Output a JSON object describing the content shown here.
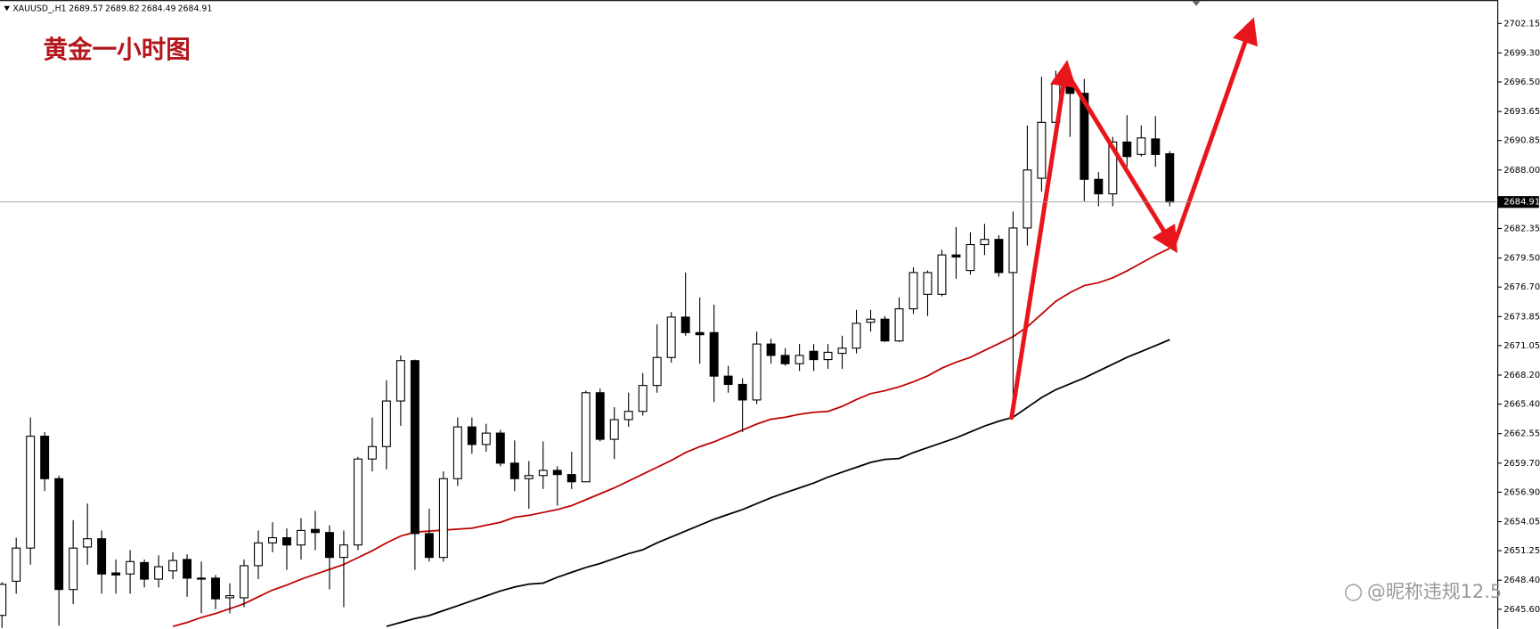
{
  "chart_data": {
    "type": "candlestick",
    "symbol": "XAUUSD_,H1",
    "header_values": [
      2689.57,
      2689.82,
      2684.49,
      2684.91
    ],
    "title": "黄金一小时图",
    "watermark": "@昵称违规12.5",
    "current_price": 2684.91,
    "up_color": "#ffffff",
    "down_color": "#000000",
    "ylim": [
      2643.7,
      2704.4
    ],
    "yticks": [
      2702.15,
      {
        "value": 2699.3,
        "label": "2699.30"
      },
      {
        "value": 2696.5,
        "label": "2696.50"
      },
      2693.65,
      2690.85,
      {
        "value": 2688,
        "label": "2688.00"
      },
      2682.35,
      {
        "value": 2679.5,
        "label": "2679.50"
      },
      {
        "value": 2676.7,
        "label": "2676.70"
      },
      2673.85,
      2671.05,
      {
        "value": 2668.2,
        "label": "2668.20"
      },
      {
        "value": 2665.4,
        "label": "2665.40"
      },
      2662.55,
      {
        "value": 2659.7,
        "label": "2659.70"
      },
      {
        "value": 2656.9,
        "label": "2656.90"
      },
      2654.05,
      2651.25,
      {
        "value": 2648.4,
        "label": "2648.40"
      },
      {
        "value": 2645.6,
        "label": "2645.60"
      }
    ],
    "open": [
      2645.0,
      2648.3,
      2651.5,
      2662.3,
      2658.2,
      2647.5,
      2651.6,
      2652.4,
      2649.1,
      2649.0,
      2650.1,
      2648.5,
      2649.3,
      2650.4,
      2648.6,
      2648.6,
      2646.7,
      2646.7,
      2649.8,
      2652.0,
      2652.5,
      2651.8,
      2653.3,
      2653.0,
      2650.6,
      2651.8,
      2660.1,
      2661.3,
      2665.7,
      2669.6,
      2652.9,
      2650.6,
      2658.2,
      2663.2,
      2661.5,
      2662.6,
      2659.7,
      2658.2,
      2658.5,
      2659.0,
      2658.6,
      2657.9,
      2666.5,
      2662.0,
      2663.9,
      2664.7,
      2667.2,
      2669.9,
      2673.8,
      2672.3,
      2672.3,
      2668.1,
      2667.3,
      2665.8,
      2671.2,
      2670.1,
      2669.3,
      2670.5,
      2669.7,
      2670.3,
      2670.8,
      2673.3,
      2673.6,
      2671.5,
      2674.6,
      2676.0,
      2676.0,
      2679.8,
      2678.3,
      2680.8,
      2681.3,
      2678.1,
      2682.4,
      2687.2,
      2692.6,
      2696.4,
      2695.4,
      2687.1,
      2685.7,
      2690.7,
      2689.5,
      2691.0,
      2689.57
    ],
    "high": [
      2648.2,
      2652.5,
      2664.1,
      2662.7,
      2658.5,
      2654.2,
      2655.8,
      2653.2,
      2650.4,
      2651.3,
      2650.4,
      2650.8,
      2651.1,
      2650.9,
      2650.2,
      2648.9,
      2648.1,
      2650.4,
      2653.2,
      2654.0,
      2653.4,
      2654.4,
      2655.1,
      2653.7,
      2653.2,
      2660.3,
      2664.1,
      2667.7,
      2670.1,
      2669.7,
      2655.3,
      2658.9,
      2664.1,
      2664.1,
      2663.5,
      2662.9,
      2661.9,
      2659.9,
      2661.8,
      2659.4,
      2660.8,
      2666.7,
      2666.9,
      2665.1,
      2666.5,
      2668.4,
      2673.1,
      2674.3,
      2678.1,
      2675.7,
      2675.0,
      2669.1,
      2667.9,
      2672.4,
      2671.7,
      2670.8,
      2671.2,
      2671.2,
      2671.2,
      2672.0,
      2674.5,
      2674.5,
      2673.9,
      2675.7,
      2678.6,
      2678.3,
      2680.3,
      2682.5,
      2682.0,
      2682.8,
      2681.7,
      2684.0,
      2692.3,
      2697.0,
      2697.6,
      2696.8,
      2696.8,
      2687.8,
      2691.2,
      2693.3,
      2692.3,
      2693.2,
      2689.82
    ],
    "low": [
      2643.8,
      2647.1,
      2649.9,
      2657.0,
      2644.0,
      2646.1,
      2649.9,
      2647.1,
      2647.1,
      2647.1,
      2647.7,
      2647.7,
      2648.5,
      2646.8,
      2645.2,
      2645.6,
      2645.2,
      2645.8,
      2648.5,
      2651.1,
      2649.4,
      2650.4,
      2651.3,
      2647.5,
      2645.8,
      2651.3,
      2658.9,
      2659.1,
      2663.3,
      2649.4,
      2650.2,
      2650.2,
      2657.5,
      2660.6,
      2660.8,
      2659.4,
      2657.0,
      2655.3,
      2657.2,
      2655.6,
      2657.2,
      2657.9,
      2661.8,
      2660.1,
      2663.2,
      2664.3,
      2666.5,
      2669.4,
      2672.0,
      2669.3,
      2665.6,
      2666.5,
      2662.7,
      2665.4,
      2669.3,
      2669.1,
      2668.6,
      2668.6,
      2668.8,
      2668.8,
      2670.3,
      2672.4,
      2671.4,
      2671.4,
      2674.1,
      2673.9,
      2675.8,
      2677.5,
      2677.9,
      2679.8,
      2677.7,
      2664.6,
      2680.7,
      2685.9,
      2692.1,
      2691.2,
      2685.0,
      2684.5,
      2684.5,
      2688.3,
      2689.3,
      2688.3,
      2684.49
    ],
    "close": [
      2648.0,
      2651.5,
      2662.3,
      2658.2,
      2647.5,
      2651.5,
      2652.4,
      2649.0,
      2648.9,
      2650.2,
      2648.5,
      2649.7,
      2650.3,
      2648.6,
      2648.5,
      2646.6,
      2646.9,
      2649.8,
      2652.0,
      2652.5,
      2651.8,
      2653.2,
      2653.0,
      2650.6,
      2651.8,
      2660.1,
      2661.3,
      2665.7,
      2669.6,
      2652.9,
      2650.6,
      2658.2,
      2663.2,
      2661.5,
      2662.6,
      2659.7,
      2658.2,
      2658.5,
      2659.0,
      2658.6,
      2657.9,
      2666.5,
      2662.0,
      2663.9,
      2664.7,
      2667.2,
      2669.9,
      2673.8,
      2672.3,
      2672.1,
      2668.1,
      2667.3,
      2665.8,
      2671.2,
      2670.1,
      2669.3,
      2670.1,
      2669.7,
      2670.4,
      2670.8,
      2673.2,
      2673.6,
      2671.5,
      2674.6,
      2678.1,
      2678.1,
      2679.8,
      2679.6,
      2680.8,
      2681.3,
      2678.1,
      2682.4,
      2688.0,
      2692.6,
      2696.4,
      2695.4,
      2687.1,
      2685.7,
      2690.7,
      2689.3,
      2691.1,
      2689.5,
      2684.91
    ],
    "lines": [
      {
        "color": "#c00000",
        "values": [
          null,
          null,
          null,
          null,
          null,
          null,
          null,
          null,
          null,
          null,
          null,
          null,
          2643.94,
          2644.32,
          2644.8,
          2645.18,
          2645.65,
          2646.12,
          2646.79,
          2647.45,
          2647.93,
          2648.49,
          2648.97,
          2649.44,
          2649.92,
          2650.58,
          2651.24,
          2652.0,
          2652.66,
          2653.04,
          2653.14,
          2653.23,
          2653.33,
          2653.42,
          2653.71,
          2653.99,
          2654.47,
          2654.66,
          2654.94,
          2655.22,
          2655.6,
          2656.17,
          2656.74,
          2657.31,
          2657.97,
          2658.64,
          2659.3,
          2659.96,
          2660.72,
          2661.29,
          2661.76,
          2662.33,
          2662.9,
          2663.47,
          2663.94,
          2664.13,
          2664.42,
          2664.61,
          2664.7,
          2665.18,
          2665.84,
          2666.41,
          2666.69,
          2667.07,
          2667.55,
          2668.12,
          2668.87,
          2669.44,
          2669.92,
          2670.58,
          2671.24,
          2671.91,
          2672.86,
          2674.09,
          2675.32,
          2676.17,
          2676.84,
          2677.12,
          2677.59,
          2678.26,
          2679.02,
          2679.77,
          2680.44
        ]
      },
      {
        "color": "#000000",
        "values": [
          null,
          null,
          null,
          null,
          null,
          null,
          null,
          null,
          null,
          null,
          null,
          null,
          null,
          null,
          null,
          null,
          null,
          null,
          null,
          null,
          null,
          null,
          null,
          null,
          null,
          null,
          null,
          2643.94,
          2644.32,
          2644.7,
          2644.99,
          2645.46,
          2645.93,
          2646.41,
          2646.88,
          2647.36,
          2647.74,
          2648.02,
          2648.12,
          2648.68,
          2649.16,
          2649.63,
          2650.01,
          2650.49,
          2650.96,
          2651.34,
          2652.0,
          2652.57,
          2653.14,
          2653.71,
          2654.28,
          2654.75,
          2655.22,
          2655.79,
          2656.36,
          2656.84,
          2657.31,
          2657.78,
          2658.35,
          2658.83,
          2659.3,
          2659.77,
          2660.06,
          2660.15,
          2660.72,
          2661.2,
          2661.67,
          2662.14,
          2662.71,
          2663.28,
          2663.75,
          2664.13,
          2665.08,
          2666.03,
          2666.79,
          2667.36,
          2667.93,
          2668.59,
          2669.25,
          2669.92,
          2670.48,
          2671.05,
          2671.62
        ]
      }
    ]
  }
}
